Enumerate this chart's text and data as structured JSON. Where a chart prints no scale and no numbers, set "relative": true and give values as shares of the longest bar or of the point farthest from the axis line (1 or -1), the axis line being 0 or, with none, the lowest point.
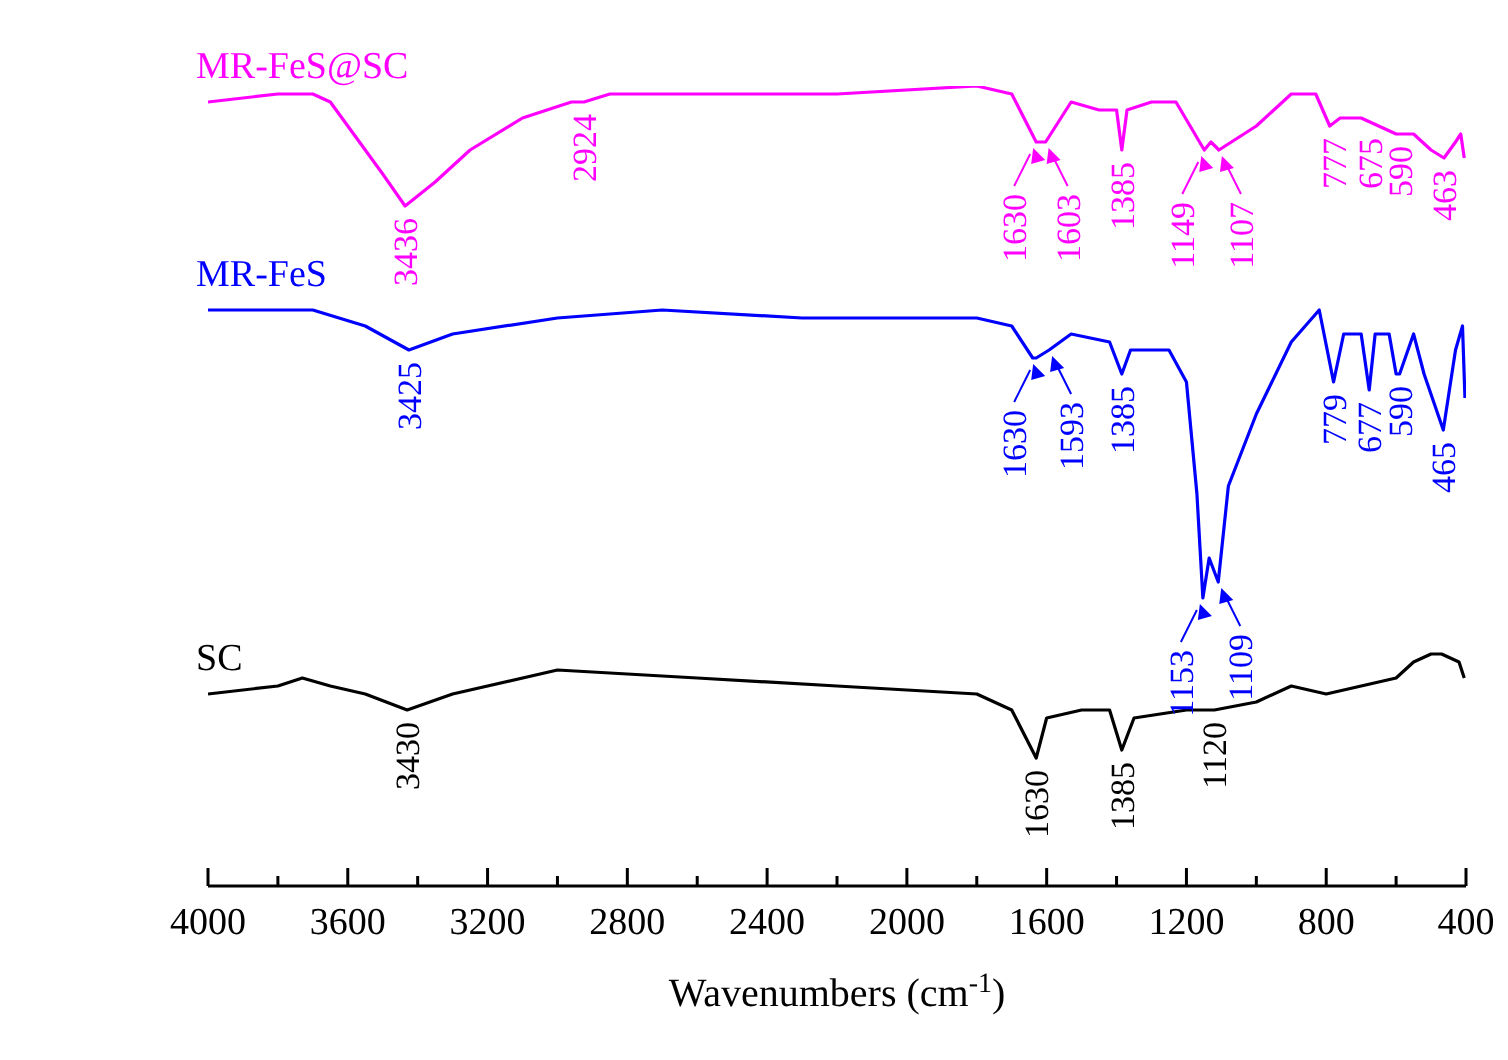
{
  "chart_data": {
    "type": "line",
    "relative": true,
    "xlabel": "Wavenumbers (cm$^{-1}$)",
    "xlim": [
      4000,
      400
    ],
    "xticks": [
      4000,
      {
        "value": 3800,
        "label": null
      },
      3600,
      {
        "value": 3400,
        "label": null
      },
      3200,
      {
        "value": 3000,
        "label": null
      },
      2800,
      {
        "value": 2600,
        "label": null
      },
      2400,
      {
        "value": 2200,
        "label": null
      },
      2000,
      {
        "value": 1800,
        "label": null
      },
      1600,
      {
        "value": 1400,
        "label": null
      },
      1200,
      {
        "value": 1000,
        "label": null
      },
      800,
      {
        "value": 600,
        "label": null
      },
      400
    ],
    "legend": false,
    "grid": false,
    "series": [
      {
        "name": "MR-FeS@SC",
        "color": "#ff00ff",
        "x": [
          4000,
          3800,
          3700,
          3650,
          3600,
          3550,
          3500,
          3436,
          3350,
          3250,
          3100,
          2960,
          2924,
          2850,
          2600,
          2200,
          1800,
          1700,
          1630,
          1603,
          1530,
          1450,
          1400,
          1385,
          1370,
          1300,
          1230,
          1149,
          1130,
          1107,
          1000,
          900,
          830,
          790,
          760,
          700,
          650,
          600,
          550,
          500,
          463,
          430,
          415,
          405
        ],
        "values": [
          0.98,
          0.99,
          0.99,
          0.98,
          0.95,
          0.92,
          0.89,
          0.85,
          0.88,
          0.92,
          0.96,
          0.98,
          0.98,
          0.99,
          0.99,
          0.99,
          1,
          0.99,
          0.93,
          0.93,
          0.98,
          0.97,
          0.97,
          0.92,
          0.97,
          0.98,
          0.98,
          0.92,
          0.93,
          0.92,
          0.95,
          0.99,
          0.99,
          0.95,
          0.96,
          0.96,
          0.95,
          0.94,
          0.94,
          0.92,
          0.91,
          0.93,
          0.94,
          0.91
        ]
      },
      {
        "name": "MR-FeS",
        "color": "#0000ff",
        "x": [
          4000,
          3700,
          3550,
          3425,
          3300,
          3000,
          2700,
          2300,
          1800,
          1700,
          1640,
          1630,
          1593,
          1530,
          1420,
          1385,
          1360,
          1250,
          1200,
          1170,
          1153,
          1135,
          1109,
          1080,
          1000,
          900,
          820,
          779,
          750,
          700,
          677,
          660,
          620,
          600,
          590,
          550,
          520,
          465,
          430,
          410,
          403
        ],
        "values": [
          0.72,
          0.72,
          0.7,
          0.67,
          0.69,
          0.71,
          0.72,
          0.71,
          0.71,
          0.7,
          0.66,
          0.66,
          0.67,
          0.69,
          0.68,
          0.64,
          0.67,
          0.67,
          0.63,
          0.49,
          0.36,
          0.41,
          0.38,
          0.5,
          0.59,
          0.68,
          0.72,
          0.63,
          0.69,
          0.69,
          0.62,
          0.69,
          0.69,
          0.64,
          0.64,
          0.69,
          0.64,
          0.57,
          0.67,
          0.7,
          0.61
        ]
      },
      {
        "name": "SC",
        "color": "#000000",
        "x": [
          4000,
          3800,
          3730,
          3650,
          3550,
          3430,
          3300,
          3000,
          2600,
          2200,
          1800,
          1700,
          1630,
          1600,
          1500,
          1420,
          1385,
          1350,
          1200,
          1120,
          1000,
          900,
          800,
          700,
          600,
          550,
          500,
          470,
          420,
          405
        ],
        "values": [
          0.24,
          0.25,
          0.26,
          0.25,
          0.24,
          0.22,
          0.24,
          0.27,
          0.26,
          0.25,
          0.24,
          0.22,
          0.16,
          0.21,
          0.22,
          0.22,
          0.17,
          0.21,
          0.22,
          0.22,
          0.23,
          0.25,
          0.24,
          0.25,
          0.26,
          0.28,
          0.29,
          0.29,
          0.28,
          0.26
        ]
      }
    ],
    "annotations": [
      {
        "text": "3436",
        "x": 3436,
        "y": 0.85
      },
      {
        "text": "2924",
        "x": 2924,
        "y": 0.98
      },
      {
        "text": "1630",
        "x": 1630,
        "y": 0.93
      },
      {
        "text": "1603",
        "x": 1603,
        "y": 0.93
      },
      {
        "text": "1385",
        "x": 1385,
        "y": 0.92
      },
      {
        "text": "1149",
        "x": 1149,
        "y": 0.92
      },
      {
        "text": "1107",
        "x": 1107,
        "y": 0.92
      },
      {
        "text": "777",
        "x": 777,
        "y": 0.95
      },
      {
        "text": "675",
        "x": 675,
        "y": 0.95
      },
      {
        "text": "590",
        "x": 590,
        "y": 0.94
      },
      {
        "text": "463",
        "x": 463,
        "y": 0.91
      },
      {
        "text": "3425",
        "x": 3425,
        "y": 0.67
      },
      {
        "text": "1630",
        "x": 1630,
        "y": 0.66
      },
      {
        "text": "1593",
        "x": 1593,
        "y": 0.67
      },
      {
        "text": "1385",
        "x": 1385,
        "y": 0.64
      },
      {
        "text": "1153",
        "x": 1153,
        "y": 0.36
      },
      {
        "text": "1109",
        "x": 1109,
        "y": 0.38
      },
      {
        "text": "779",
        "x": 779,
        "y": 0.63
      },
      {
        "text": "677",
        "x": 677,
        "y": 0.62
      },
      {
        "text": "590",
        "x": 590,
        "y": 0.64
      },
      {
        "text": "465",
        "x": 465,
        "y": 0.57
      },
      {
        "text": "3430",
        "x": 3430,
        "y": 0.22
      },
      {
        "text": "1630",
        "x": 1630,
        "y": 0.16
      },
      {
        "text": "1385",
        "x": 1385,
        "y": 0.17
      },
      {
        "text": "1120",
        "x": 1120,
        "y": 0.22
      }
    ]
  }
}
